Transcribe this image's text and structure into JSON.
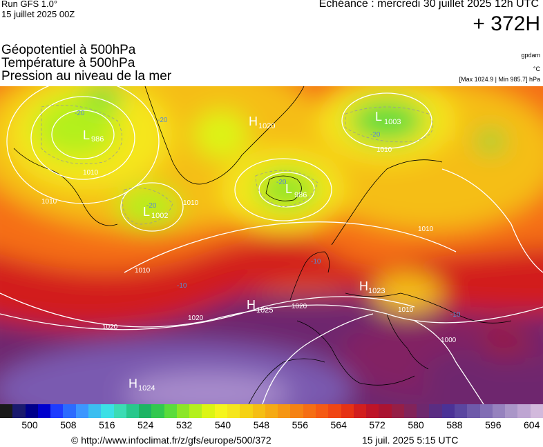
{
  "header": {
    "run_label": "Run GFS 1.0°",
    "run_date": "15 juillet 2025 00Z",
    "valid_time": "Echéance : mercredi 30 juillet 2025 12h UTC",
    "lead_time": "+ 372H"
  },
  "titles": [
    "Géopotentiel à 500hPa",
    "Température à 500hPa",
    "Pression au niveau de la mer"
  ],
  "units": {
    "geopotential": "gpdam",
    "temperature": "°C",
    "pressure_range": "[Max 1024.9 | Min 985.7] hPa"
  },
  "pressure_systems": [
    {
      "type": "L",
      "value": "986"
    },
    {
      "type": "L",
      "value": "1002"
    },
    {
      "type": "H",
      "value": "1020"
    },
    {
      "type": "L",
      "value": "986"
    },
    {
      "type": "L",
      "value": "1003"
    },
    {
      "type": "H",
      "value": "1025"
    },
    {
      "type": "H",
      "value": "1023"
    },
    {
      "type": "H",
      "value": "1024"
    }
  ],
  "isobar_labels": [
    "1010",
    "1010",
    "1010",
    "1010",
    "1010",
    "1010",
    "1020",
    "1020",
    "1020",
    "1010",
    "1000"
  ],
  "temperature_labels": [
    "-20",
    "-20",
    "-20",
    "-20",
    "-20",
    "-10",
    "-10",
    "-10"
  ],
  "colorbar": {
    "colors": [
      "#1a1a1a",
      "#1a1a6e",
      "#00008b",
      "#0000cd",
      "#1e3cff",
      "#2b6bff",
      "#3c96ff",
      "#3cbef0",
      "#3ce0e6",
      "#3cdcb4",
      "#28c88c",
      "#1eb464",
      "#32c850",
      "#5adc3c",
      "#8ce628",
      "#b4f01e",
      "#dcf514",
      "#f5f51e",
      "#f5e61e",
      "#f5d214",
      "#f5be14",
      "#f5aa14",
      "#f59614",
      "#f58214",
      "#f56e14",
      "#f55a14",
      "#f04614",
      "#e63214",
      "#d21e1e",
      "#be1428",
      "#aa1432",
      "#961e46",
      "#82235a",
      "#6e286e",
      "#5a2d82",
      "#4b3296",
      "#5a46a0",
      "#6e5aaa",
      "#826eb4",
      "#9682be",
      "#aa96c8",
      "#bea5d2",
      "#d2b9dc"
    ],
    "ticks": [
      "500",
      "508",
      "516",
      "524",
      "532",
      "540",
      "548",
      "556",
      "564",
      "572",
      "580",
      "588",
      "596",
      "604"
    ]
  },
  "footer": {
    "source": "© http://www.infoclimat.fr/z/gfs/europe/500/372",
    "date": "15 juil. 2025  5:15 UTC"
  }
}
